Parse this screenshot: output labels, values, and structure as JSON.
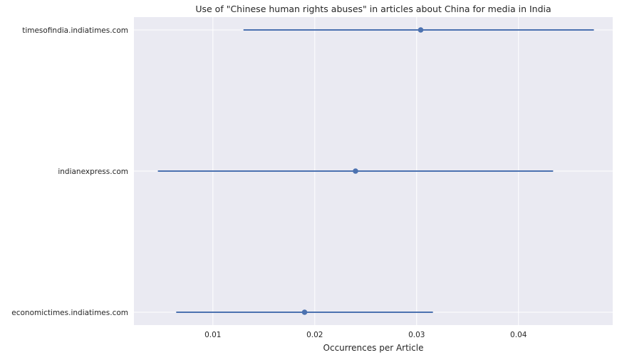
{
  "chart_data": {
    "type": "errorbar",
    "title": "Use of \"Chinese human rights abuses\" in articles about China for media in India",
    "xlabel": "Occurrences per Article",
    "ylabel": "",
    "xlim": [
      0.00225,
      0.04925
    ],
    "x_ticks": [
      0.01,
      0.02,
      0.03,
      0.04
    ],
    "x_tick_labels": [
      "0.01",
      "0.02",
      "0.03",
      "0.04"
    ],
    "categories": [
      "timesofindia.indiatimes.com",
      "indianexpress.com",
      "economictimes.indiatimes.com"
    ],
    "points": [
      {
        "category": "timesofindia.indiatimes.com",
        "value": 0.0304,
        "lower": 0.013,
        "upper": 0.0474
      },
      {
        "category": "indianexpress.com",
        "value": 0.024,
        "lower": 0.0046,
        "upper": 0.0434
      },
      {
        "category": "economictimes.indiatimes.com",
        "value": 0.019,
        "lower": 0.0064,
        "upper": 0.0316
      }
    ],
    "grid": true,
    "colors": {
      "series": "#4c72b0",
      "background": "#eaeaf2",
      "grid": "#ffffff"
    }
  }
}
